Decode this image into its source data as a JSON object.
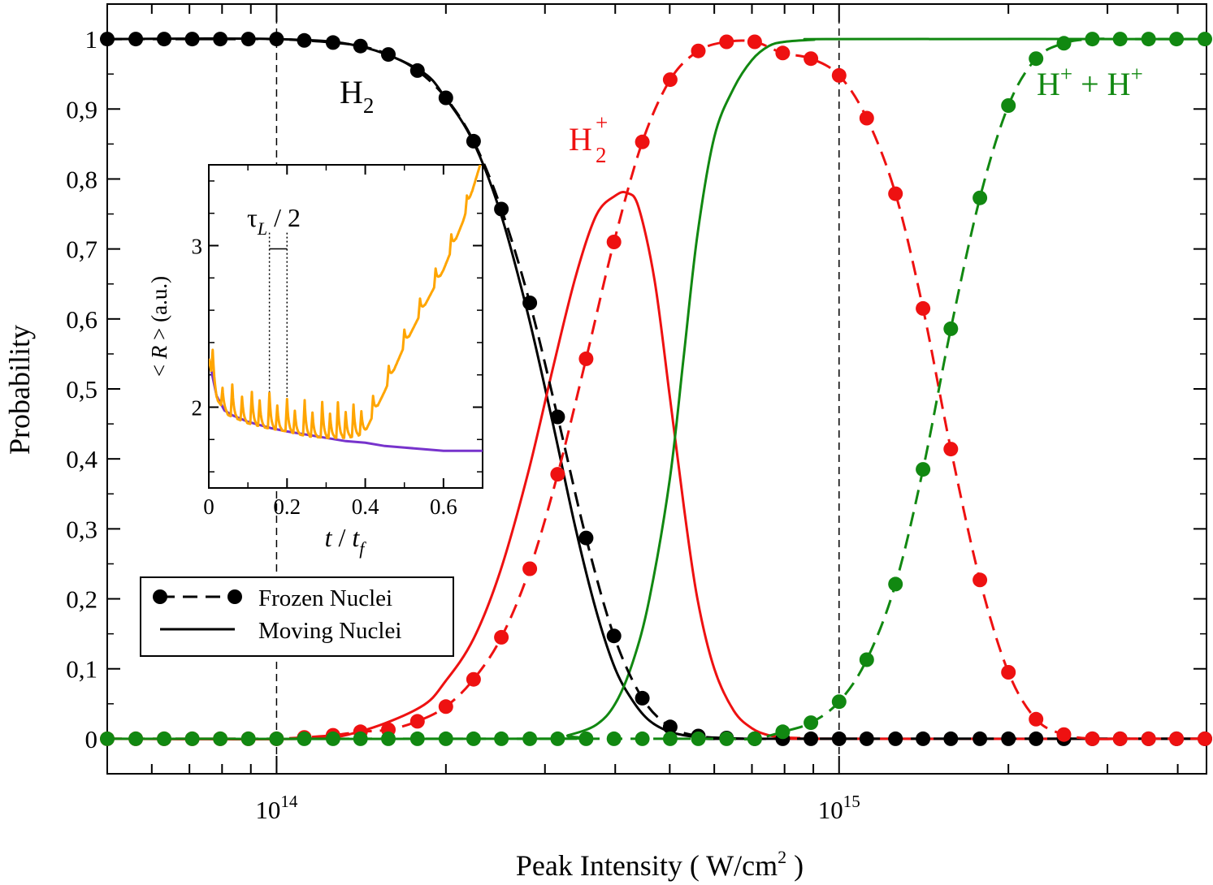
{
  "chart_data": [
    {
      "id": "main",
      "type": "line",
      "xlabel": "Peak Intensity ( W/cm²)",
      "xlabel_parts": {
        "text": "Peak Intensity ( W/cm",
        "sup": "2",
        "tail": " )"
      },
      "ylabel": "Probability",
      "x_scale": "log",
      "xlim": [
        50000000000000.0,
        4500000000000000.0
      ],
      "ylim": [
        -0.05,
        1.05
      ],
      "x_major_ticks": [
        {
          "value": 100000000000000.0,
          "base": "10",
          "exp": "14"
        },
        {
          "value": 1000000000000000.0,
          "base": "10",
          "exp": "15"
        }
      ],
      "y_ticks": [
        {
          "value": 0,
          "label": "0"
        },
        {
          "value": 0.1,
          "label": "0,1"
        },
        {
          "value": 0.2,
          "label": "0,2"
        },
        {
          "value": 0.3,
          "label": "0,3"
        },
        {
          "value": 0.4,
          "label": "0,4"
        },
        {
          "value": 0.5,
          "label": "0,5"
        },
        {
          "value": 0.6,
          "label": "0,6"
        },
        {
          "value": 0.7,
          "label": "0,7"
        },
        {
          "value": 0.8,
          "label": "0,8"
        },
        {
          "value": 0.9,
          "label": "0,9"
        },
        {
          "value": 1,
          "label": "1"
        }
      ],
      "vertical_dashed_lines": [
        100000000000000.0,
        1000000000000000.0
      ],
      "grid": false,
      "colors": {
        "h2": "#000000",
        "h2plus": "#ee1111",
        "hh": "#118811"
      },
      "frozen_x": [
        50000000000000.0,
        56200000000000.0,
        63100000000000.0,
        70800000000000.0,
        79400000000000.0,
        89100000000000.0,
        100000000000000.0,
        112000000000000.0,
        126000000000000.0,
        141000000000000.0,
        158000000000000.0,
        178000000000000.0,
        200000000000000.0,
        224000000000000.0,
        251000000000000.0,
        282000000000000.0,
        316000000000000.0,
        355000000000000.0,
        398000000000000.0,
        447000000000000.0,
        501000000000000.0,
        562000000000000.0,
        631000000000000.0,
        708000000000000.0,
        794000000000000.0,
        891000000000000.0,
        1000000000000000.0,
        1120000000000000.0,
        1260000000000000.0,
        1410000000000000.0,
        1580000000000000.0,
        1780000000000000.0,
        2000000000000000.0,
        2240000000000000.0,
        2510000000000000.0,
        2820000000000000.0,
        3160000000000000.0,
        3550000000000000.0,
        3980000000000000.0,
        4470000000000000.0
      ],
      "series": [
        {
          "name": "H2",
          "kind": "frozen",
          "color_key": "h2",
          "values": [
            1,
            1,
            1,
            1,
            1,
            1,
            1,
            0.998,
            0.995,
            0.99,
            0.978,
            0.955,
            0.916,
            0.854,
            0.757,
            0.623,
            0.46,
            0.287,
            0.147,
            0.058,
            0.017,
            0.004,
            0.001,
            0,
            0,
            0,
            0,
            0,
            0,
            0,
            0,
            0,
            0,
            0,
            0,
            0,
            0,
            0,
            0,
            0
          ]
        },
        {
          "name": "H2+",
          "kind": "frozen",
          "color_key": "h2plus",
          "values": [
            0,
            0,
            0,
            0,
            0,
            0,
            0,
            0.002,
            0.005,
            0.01,
            0.013,
            0.025,
            0.046,
            0.085,
            0.145,
            0.243,
            0.378,
            0.543,
            0.71,
            0.853,
            0.942,
            0.983,
            0.996,
            0.996,
            0.98,
            0.972,
            0.948,
            0.887,
            0.779,
            0.615,
            0.414,
            0.227,
            0.095,
            0.028,
            0.006,
            0,
            0,
            0,
            0,
            0
          ]
        },
        {
          "name": "H+ + H+",
          "kind": "frozen",
          "color_key": "hh",
          "values": [
            0,
            0,
            0,
            0,
            0,
            0,
            0,
            0,
            0,
            0,
            0,
            0,
            0,
            0,
            0,
            0,
            0,
            0,
            0,
            0,
            0,
            0,
            0,
            0,
            0.01,
            0.023,
            0.053,
            0.113,
            0.221,
            0.385,
            0.586,
            0.773,
            0.905,
            0.972,
            0.994,
            1,
            1,
            1,
            1,
            1
          ]
        },
        {
          "name": "H2",
          "kind": "moving",
          "color_key": "h2",
          "x": [
            50000000000000.0,
            100000000000000.0,
            140000000000000.0,
            180000000000000.0,
            200000000000000.0,
            224000000000000.0,
            250000000000000.0,
            280000000000000.0,
            310000000000000.0,
            340000000000000.0,
            370000000000000.0,
            400000000000000.0,
            430000000000000.0,
            460000000000000.0,
            500000000000000.0,
            550000000000000.0,
            600000000000000.0,
            700000000000000.0,
            4500000000000000.0
          ],
          "values": [
            1,
            1,
            0.99,
            0.955,
            0.915,
            0.852,
            0.752,
            0.606,
            0.45,
            0.301,
            0.183,
            0.1,
            0.054,
            0.026,
            0.01,
            0.003,
            0,
            0,
            0
          ]
        },
        {
          "name": "H2+",
          "kind": "moving",
          "color_key": "h2plus",
          "x": [
            50000000000000.0,
            110000000000000.0,
            140000000000000.0,
            180000000000000.0,
            200000000000000.0,
            224000000000000.0,
            250000000000000.0,
            280000000000000.0,
            310000000000000.0,
            340000000000000.0,
            370000000000000.0,
            400000000000000.0,
            420000000000000.0,
            440000000000000.0,
            470000000000000.0,
            500000000000000.0,
            530000000000000.0,
            560000000000000.0,
            600000000000000.0,
            650000000000000.0,
            700000000000000.0,
            750000000000000.0,
            800000000000000.0,
            850000000000000.0,
            900000000000000.0,
            4500000000000000.0
          ],
          "values": [
            0,
            0,
            0.01,
            0.045,
            0.083,
            0.143,
            0.24,
            0.38,
            0.53,
            0.66,
            0.748,
            0.776,
            0.78,
            0.76,
            0.655,
            0.49,
            0.33,
            0.2,
            0.1,
            0.04,
            0.015,
            0.005,
            0.002,
            0.001,
            0,
            0
          ]
        },
        {
          "name": "H+ + H+",
          "kind": "moving",
          "color_key": "hh",
          "x": [
            50000000000000.0,
            300000000000000.0,
            330000000000000.0,
            370000000000000.0,
            400000000000000.0,
            430000000000000.0,
            460000000000000.0,
            500000000000000.0,
            530000000000000.0,
            560000000000000.0,
            600000000000000.0,
            650000000000000.0,
            700000000000000.0,
            750000000000000.0,
            800000000000000.0,
            900000000000000.0,
            1000000000000000.0,
            4500000000000000.0
          ],
          "values": [
            0,
            0,
            0.005,
            0.02,
            0.05,
            0.11,
            0.2,
            0.37,
            0.55,
            0.72,
            0.86,
            0.93,
            0.97,
            0.99,
            0.996,
            0.999,
            1,
            1
          ]
        }
      ],
      "annotations": [
        {
          "id": "h2",
          "base": "H",
          "sub": "2",
          "color_key": "h2"
        },
        {
          "id": "h2plus",
          "base": "H",
          "sub": "2",
          "sup": "+",
          "color_key": "h2plus"
        },
        {
          "id": "hh",
          "text1": "H",
          "sup1": "+",
          "text2": " + H",
          "sup2": "+",
          "color_key": "hh"
        }
      ],
      "legend": {
        "placement": "bottom-left",
        "items": [
          {
            "label": "Frozen Nuclei",
            "style": "dashed-with-markers"
          },
          {
            "label": "Moving Nuclei",
            "style": "solid"
          }
        ]
      }
    },
    {
      "id": "inset",
      "type": "line",
      "xlabel": "t / t_f",
      "xlabel_parts": {
        "t": "t",
        "sep": " / ",
        "tf": "t",
        "sub": "f"
      },
      "ylabel": "< R > (a.u.)",
      "ylabel_parts": {
        "open": "< ",
        "var": "R",
        "close": " > (a.u.)"
      },
      "xlim": [
        0,
        0.7
      ],
      "ylim": [
        1.5,
        3.5
      ],
      "x_ticks": [
        {
          "value": 0,
          "label": "0"
        },
        {
          "value": 0.2,
          "label": "0.2"
        },
        {
          "value": 0.4,
          "label": "0.4"
        },
        {
          "value": 0.6,
          "label": "0.6"
        }
      ],
      "y_ticks": [
        {
          "value": 2,
          "label": "2"
        },
        {
          "value": 3,
          "label": "3"
        }
      ],
      "annotation": {
        "tau": "τ",
        "sub": "L",
        "rest": " / 2"
      },
      "marker_lines": [
        0.155,
        0.2
      ],
      "colors": {
        "moving": "#ffa500",
        "frozen": "#7733cc"
      },
      "purple_series": {
        "x": [
          0,
          0.02,
          0.04,
          0.06,
          0.08,
          0.1,
          0.13,
          0.16,
          0.2,
          0.25,
          0.3,
          0.35,
          0.4,
          0.45,
          0.5,
          0.55,
          0.6,
          0.7
        ],
        "y": [
          2.3,
          2.07,
          1.98,
          1.95,
          1.93,
          1.91,
          1.89,
          1.87,
          1.85,
          1.83,
          1.81,
          1.79,
          1.78,
          1.76,
          1.75,
          1.74,
          1.73,
          1.73
        ]
      },
      "orange_baseline": {
        "x": [
          0,
          0.02,
          0.05,
          0.1,
          0.15,
          0.2,
          0.25,
          0.3,
          0.35,
          0.38,
          0.4,
          0.42,
          0.45,
          0.5,
          0.55,
          0.6,
          0.65,
          0.7
        ],
        "y": [
          2.3,
          2.05,
          1.95,
          1.9,
          1.87,
          1.85,
          1.82,
          1.81,
          1.81,
          1.82,
          1.85,
          1.95,
          2.1,
          2.38,
          2.62,
          2.85,
          3.15,
          3.55
        ]
      },
      "orange_spikes": [
        {
          "x": 0.01,
          "dy": 0.18
        },
        {
          "x": 0.035,
          "dy": 0.12
        },
        {
          "x": 0.06,
          "dy": 0.2
        },
        {
          "x": 0.085,
          "dy": 0.15
        },
        {
          "x": 0.11,
          "dy": 0.2
        },
        {
          "x": 0.13,
          "dy": 0.16
        },
        {
          "x": 0.155,
          "dy": 0.22
        },
        {
          "x": 0.175,
          "dy": 0.15
        },
        {
          "x": 0.2,
          "dy": 0.2
        },
        {
          "x": 0.22,
          "dy": 0.14
        },
        {
          "x": 0.245,
          "dy": 0.22
        },
        {
          "x": 0.265,
          "dy": 0.15
        },
        {
          "x": 0.29,
          "dy": 0.22
        },
        {
          "x": 0.31,
          "dy": 0.15
        },
        {
          "x": 0.33,
          "dy": 0.22
        },
        {
          "x": 0.35,
          "dy": 0.16
        },
        {
          "x": 0.37,
          "dy": 0.2
        },
        {
          "x": 0.39,
          "dy": 0.14
        },
        {
          "x": 0.42,
          "dy": 0.12
        },
        {
          "x": 0.46,
          "dy": 0.1
        },
        {
          "x": 0.5,
          "dy": 0.1
        },
        {
          "x": 0.54,
          "dy": 0.1
        },
        {
          "x": 0.58,
          "dy": 0.1
        },
        {
          "x": 0.62,
          "dy": 0.1
        },
        {
          "x": 0.66,
          "dy": 0.08
        }
      ]
    }
  ]
}
